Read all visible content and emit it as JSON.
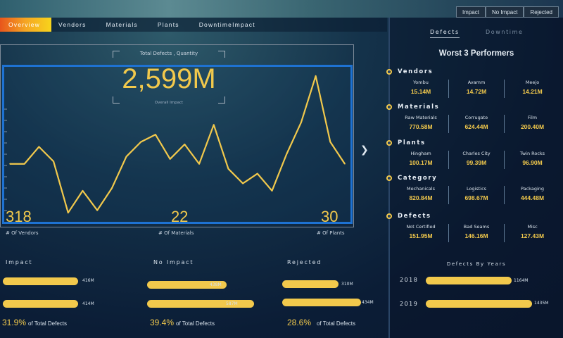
{
  "filters": [
    "Impact",
    "No Impact",
    "Rejected"
  ],
  "nav": {
    "tabs": [
      "Overview",
      "Vendors",
      "Materials",
      "Plants",
      "DowntimeImpact"
    ]
  },
  "kpi": {
    "caption": "Total Defects , Quantity",
    "value": "2,599M",
    "subcaption": "Overall Impact"
  },
  "chart_data": {
    "type": "line",
    "title": "",
    "xlabel": "",
    "ylabel": "",
    "series": [
      {
        "values": [
          10,
          10,
          17,
          11,
          -10,
          -1,
          -9,
          0,
          13,
          19,
          22,
          12,
          18,
          10,
          26,
          8,
          2,
          6,
          -1,
          14,
          27,
          46,
          19,
          10
        ]
      }
    ],
    "ylim": [
      -12,
      48
    ],
    "color": "#f2c94c"
  },
  "stats": [
    {
      "value": "318",
      "label": "# Of Vendors"
    },
    {
      "value": "22",
      "label": "# Of Materials"
    },
    {
      "value": "30",
      "label": "# Of Plants"
    }
  ],
  "groups": [
    {
      "title": "Impact",
      "bars": [
        {
          "value": 416,
          "label": "416M"
        },
        {
          "value": 414,
          "label": "414M"
        }
      ],
      "pct": "31.9%"
    },
    {
      "title": "No Impact",
      "bars": [
        {
          "value": 438,
          "label": "438M"
        },
        {
          "value": 587,
          "label": "587M"
        }
      ],
      "pct": "39.4%"
    },
    {
      "title": "Rejected",
      "bars": [
        {
          "value": 310,
          "label": "310M"
        },
        {
          "value": 434,
          "label": "434M"
        }
      ],
      "pct": "28.6%"
    }
  ],
  "pct_suffix": "of Total Defects",
  "right": {
    "tabs": [
      "Defects",
      "Downtime"
    ],
    "title": "Worst 3 Performers",
    "categories": [
      {
        "name": "Vendors",
        "items": [
          {
            "name": "Yombu",
            "value": "15.14M"
          },
          {
            "name": "Avamm",
            "value": "14.72M"
          },
          {
            "name": "Meejo",
            "value": "14.21M"
          }
        ]
      },
      {
        "name": "Materials",
        "items": [
          {
            "name": "Raw Materials",
            "value": "770.58M"
          },
          {
            "name": "Corrugate",
            "value": "624.44M"
          },
          {
            "name": "Film",
            "value": "200.40M"
          }
        ]
      },
      {
        "name": "Plants",
        "items": [
          {
            "name": "Hingham",
            "value": "100.17M"
          },
          {
            "name": "Charles City",
            "value": "99.39M"
          },
          {
            "name": "Twin Rocks",
            "value": "96.90M"
          }
        ]
      },
      {
        "name": "Category",
        "items": [
          {
            "name": "Mechanicals",
            "value": "820.84M"
          },
          {
            "name": "Logistics",
            "value": "698.67M"
          },
          {
            "name": "Packaging",
            "value": "444.48M"
          }
        ]
      },
      {
        "name": "Defects",
        "items": [
          {
            "name": "Not Certified",
            "value": "151.95M"
          },
          {
            "name": "Bad Seams",
            "value": "146.16M"
          },
          {
            "name": "Misc",
            "value": "127.43M"
          }
        ]
      }
    ],
    "years_title": "Defects By Years",
    "years": [
      {
        "year": "2018",
        "value": 1164,
        "label": "1164M"
      },
      {
        "year": "2019",
        "value": 1435,
        "label": "1435M"
      }
    ]
  },
  "colors": {
    "accent": "#f2c94c",
    "frame": "#1e72d2"
  }
}
